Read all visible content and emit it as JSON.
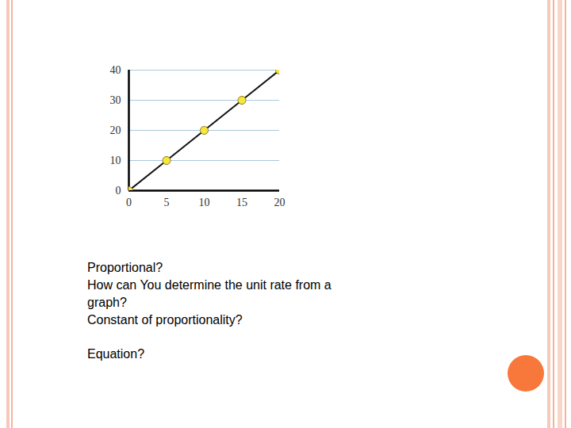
{
  "chart_data": {
    "type": "line",
    "x": [
      0,
      5,
      10,
      15,
      20
    ],
    "values": [
      0,
      10,
      20,
      30,
      40
    ],
    "color": "#111111",
    "marker": "circle",
    "xlim": [
      0,
      20
    ],
    "xticks": [
      0,
      5,
      10,
      15,
      20
    ],
    "ylim": [
      0,
      40
    ],
    "yticks": [
      0,
      10,
      20,
      30,
      40
    ],
    "grid": true,
    "annotations": [
      "Proportional?",
      "How can You determine the unit rate from a graph?",
      "Constant of proportionality?",
      "Equation?"
    ]
  }
}
